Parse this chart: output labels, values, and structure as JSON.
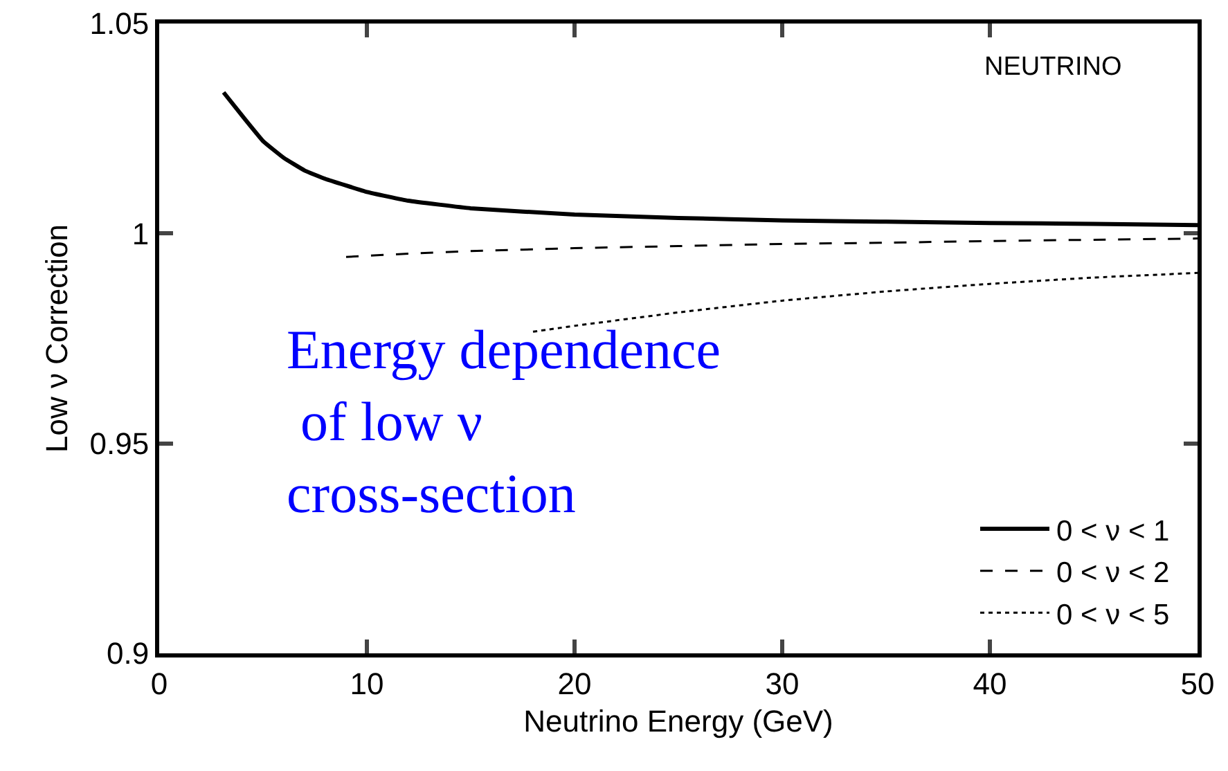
{
  "chart_data": {
    "type": "line",
    "xlabel": "Neutrino Energy (GeV)",
    "ylabel": "Low ν Correction",
    "xlim": [
      0,
      50
    ],
    "xticks": [
      0,
      10,
      20,
      30,
      40,
      50
    ],
    "ylim": [
      0.9,
      1.05
    ],
    "yticks": [
      0.9,
      0.95,
      1,
      1.05
    ],
    "grid": false,
    "legend": "bottom right",
    "annotations": [
      "NEUTRINO",
      "Energy dependence\n of low ν\ncross-section"
    ],
    "series": [
      {
        "name": "0 < ν < 1",
        "color": "#000000",
        "line_style": "solid",
        "x": [
          3.1,
          4,
          5,
          6,
          7,
          8,
          10,
          12,
          15,
          20,
          25,
          30,
          35,
          40,
          45,
          50
        ],
        "values": [
          1.0336,
          1.028,
          1.022,
          1.018,
          1.015,
          1.013,
          1.0099,
          1.0078,
          1.006,
          1.0045,
          1.0037,
          1.0031,
          1.0028,
          1.0025,
          1.0023,
          1.002
        ]
      },
      {
        "name": "0 < ν < 2",
        "color": "#000000",
        "line_style": "dashed",
        "x": [
          9,
          12,
          15,
          20,
          25,
          30,
          35,
          40,
          45,
          50
        ],
        "values": [
          0.9944,
          0.9952,
          0.9958,
          0.9965,
          0.997,
          0.9975,
          0.9978,
          0.9982,
          0.9985,
          0.9988
        ]
      },
      {
        "name": "0 < ν < 5",
        "color": "#000000",
        "line_style": "dotted",
        "x": [
          18,
          20,
          25,
          30,
          35,
          40,
          45,
          50
        ],
        "values": [
          0.9766,
          0.978,
          0.9812,
          0.984,
          0.9862,
          0.988,
          0.9895,
          0.9906
        ]
      }
    ]
  }
}
